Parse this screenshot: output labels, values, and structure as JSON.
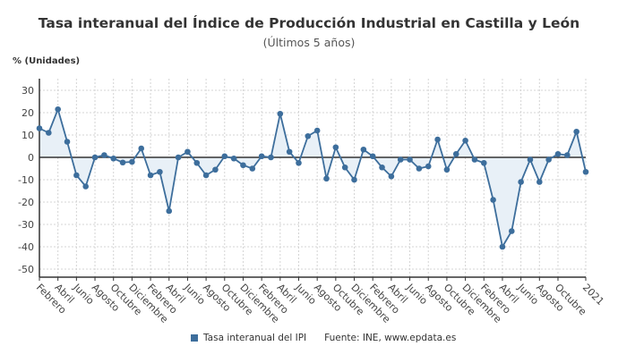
{
  "chart_data": {
    "type": "area",
    "title": "Tasa interanual del Índice de Producción Industrial en Castilla y León",
    "subtitle": "(Últimos 5 años)",
    "ylabel": "% (Unidades)",
    "ylim": [
      -53,
      35
    ],
    "yticks": [
      30,
      20,
      10,
      0,
      -10,
      -20,
      -30,
      -40,
      -50
    ],
    "grid": true,
    "legend_position": "bottom",
    "xticklabels": [
      "Febrero",
      "Abril",
      "Junio",
      "Agosto",
      "Octubre",
      "Diciembre",
      "Febrero",
      "Abril",
      "Junio",
      "Agosto",
      "Octubre",
      "Diciembre",
      "Febrero",
      "Abril",
      "Junio",
      "Agosto",
      "Octubre",
      "Diciembre",
      "Febrero",
      "Abril",
      "Junio",
      "Agosto",
      "Octubre",
      "Diciembre",
      "Febrero",
      "Abril",
      "Junio",
      "Agosto",
      "Octubre",
      "2021"
    ],
    "series": [
      {
        "name": "Tasa interanual del IPI",
        "color": "#3d6e9c",
        "fill": "#e8f0f7",
        "values": [
          13,
          11,
          21.5,
          7,
          -8,
          -13,
          0,
          1,
          -0.5,
          -2.3,
          -2,
          4,
          -8,
          -6.5,
          -24,
          0,
          2.5,
          -2.5,
          -8,
          -5.5,
          0.5,
          -0.5,
          -3.5,
          -5,
          0.5,
          0,
          19.5,
          2.5,
          -2.5,
          9.5,
          12,
          -9.5,
          4.5,
          -4.5,
          -10,
          3.5,
          0.5,
          -4.5,
          -8.5,
          -1,
          -1,
          -5,
          -4,
          8,
          -5.5,
          1.5,
          7.5,
          -1,
          -2.5,
          -19,
          -40,
          -33,
          -11,
          -1,
          -11,
          -1,
          1.5,
          1,
          11.5,
          -6.5
        ]
      }
    ],
    "source": "Fuente: INE, www.epdata.es"
  }
}
